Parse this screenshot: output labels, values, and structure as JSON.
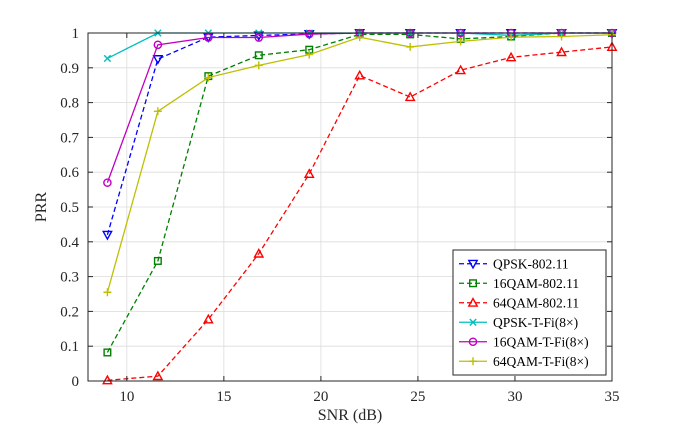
{
  "chart_data": {
    "type": "line",
    "title": "",
    "xlabel": "SNR (dB)",
    "ylabel": "PRR",
    "xlim": [
      8,
      35
    ],
    "ylim": [
      0,
      1
    ],
    "xticks": [
      10,
      15,
      20,
      25,
      30,
      35
    ],
    "yticks": [
      0,
      0.1,
      0.2,
      0.3,
      0.4,
      0.5,
      0.6,
      0.7,
      0.8,
      0.9,
      1
    ],
    "grid": true,
    "legend_position": "bottom-right",
    "x": [
      9,
      11.6,
      14.2,
      16.8,
      19.4,
      22,
      24.6,
      27.2,
      29.8,
      32.4,
      35
    ],
    "series": [
      {
        "name": "QPSK-802.11",
        "color": "#0000ff",
        "dash": "dashed",
        "marker": "triangle-down",
        "values": [
          0.42,
          0.925,
          0.988,
          0.993,
          0.997,
          1.0,
          1.0,
          1.0,
          1.0,
          1.0,
          1.0
        ]
      },
      {
        "name": "16QAM-802.11",
        "color": "#008000",
        "dash": "dashed",
        "marker": "square",
        "values": [
          0.082,
          0.345,
          0.876,
          0.936,
          0.952,
          0.996,
          0.996,
          0.983,
          0.99,
          1.0,
          1.0
        ]
      },
      {
        "name": "64QAM-802.11",
        "color": "#ff0000",
        "dash": "dashed",
        "marker": "triangle-up",
        "values": [
          0.002,
          0.014,
          0.177,
          0.366,
          0.595,
          0.878,
          0.816,
          0.893,
          0.93,
          0.945,
          0.96
        ]
      },
      {
        "name": "QPSK-T-Fi(8×)",
        "color": "#00bfbf",
        "dash": "solid",
        "marker": "x",
        "values": [
          0.927,
          1.0,
          1.0,
          1.0,
          1.0,
          1.0,
          1.0,
          1.0,
          0.993,
          1.0,
          1.0
        ]
      },
      {
        "name": "16QAM-T-Fi(8×)",
        "color": "#bf00bf",
        "dash": "solid",
        "marker": "circle",
        "values": [
          0.57,
          0.966,
          0.987,
          0.987,
          0.997,
          1.0,
          1.0,
          1.0,
          1.0,
          1.0,
          1.0
        ]
      },
      {
        "name": "64QAM-T-Fi(8×)",
        "color": "#bfbf00",
        "dash": "solid",
        "marker": "plus",
        "values": [
          0.255,
          0.775,
          0.872,
          0.907,
          0.938,
          0.988,
          0.96,
          0.976,
          0.988,
          0.99,
          0.995
        ]
      }
    ]
  }
}
